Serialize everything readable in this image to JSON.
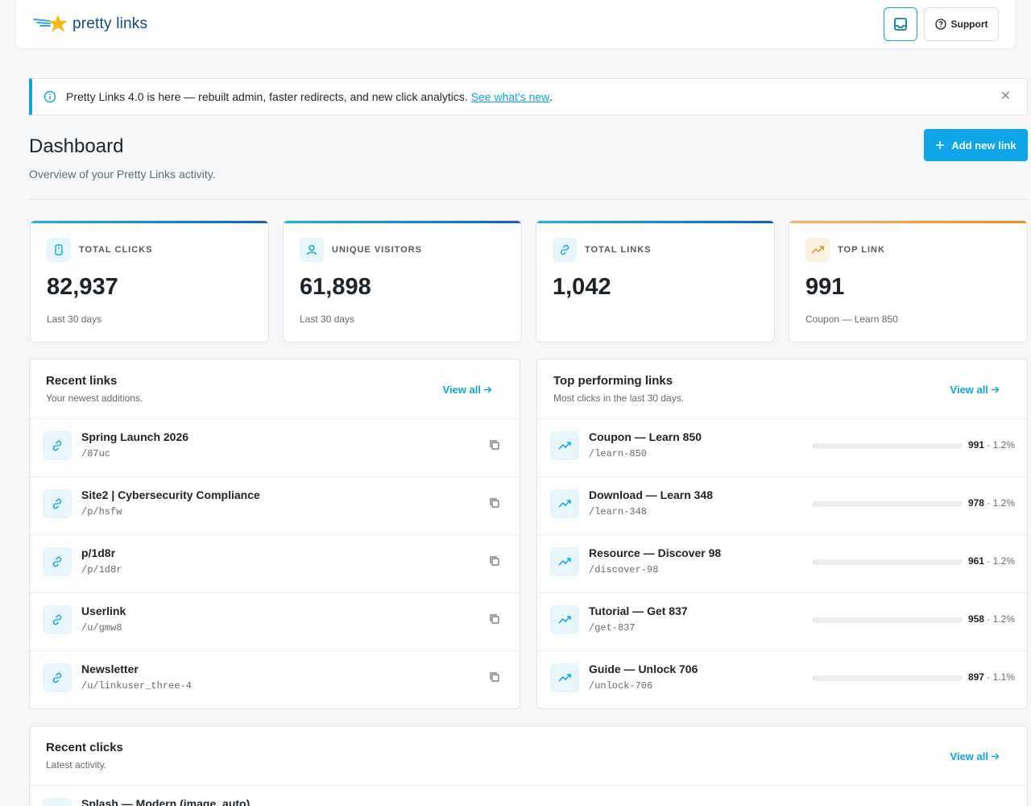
{
  "header": {
    "logo_text": "pretty links",
    "support_label": "Support"
  },
  "notice": {
    "text": "Pretty Links 4.0 is here — rebuilt admin, faster redirects, and new click analytics.",
    "link_text": "See what's new",
    "trailing": "."
  },
  "page": {
    "title": "Dashboard",
    "subtitle": "Overview of your Pretty Links activity.",
    "add_button": "Add new link"
  },
  "stats": [
    {
      "label": "TOTAL CLICKS",
      "value": "82,937",
      "sub": "Last 30 days",
      "icon": "click-icon"
    },
    {
      "label": "UNIQUE VISITORS",
      "value": "61,898",
      "sub": "Last 30 days",
      "icon": "user-icon"
    },
    {
      "label": "TOTAL LINKS",
      "value": "1,042",
      "sub": "",
      "icon": "link-icon"
    },
    {
      "label": "TOP LINK",
      "value": "991",
      "sub": "Coupon — Learn 850",
      "icon": "trending-icon"
    }
  ],
  "recent_links": {
    "title": "Recent links",
    "subtitle": "Your newest additions.",
    "view_all": "View all",
    "items": [
      {
        "name": "Spring Launch 2026",
        "slug": "/87uc"
      },
      {
        "name": "Site2 | Cybersecurity Compliance",
        "slug": "/p/hsfw"
      },
      {
        "name": "p/1d8r",
        "slug": "/p/1d8r"
      },
      {
        "name": "Userlink",
        "slug": "/u/gmw8"
      },
      {
        "name": "Newsletter",
        "slug": "/u/linkuser_three-4"
      }
    ]
  },
  "top_links": {
    "title": "Top performing links",
    "subtitle": "Most clicks in the last 30 days.",
    "view_all": "View all",
    "items": [
      {
        "name": "Coupon — Learn 850",
        "slug": "/learn-850",
        "clicks": "991",
        "pct": "1.2%",
        "share": 1.2
      },
      {
        "name": "Download — Learn 348",
        "slug": "/learn-348",
        "clicks": "978",
        "pct": "1.2%",
        "share": 1.2
      },
      {
        "name": "Resource — Discover 98",
        "slug": "/discover-98",
        "clicks": "961",
        "pct": "1.2%",
        "share": 1.2
      },
      {
        "name": "Tutorial — Get 837",
        "slug": "/get-837",
        "clicks": "958",
        "pct": "1.2%",
        "share": 1.2
      },
      {
        "name": "Guide — Unlock 706",
        "slug": "/unlock-706",
        "clicks": "897",
        "pct": "1.1%",
        "share": 1.1
      }
    ]
  },
  "recent_clicks": {
    "title": "Recent clicks",
    "subtitle": "Latest activity.",
    "view_all": "View all",
    "items": [
      {
        "name": "Splash — Modern (image, auto)"
      }
    ]
  },
  "colors": {
    "accent": "#0ea5e9",
    "link": "#0ea5d6",
    "orange": "#e58e2d"
  }
}
